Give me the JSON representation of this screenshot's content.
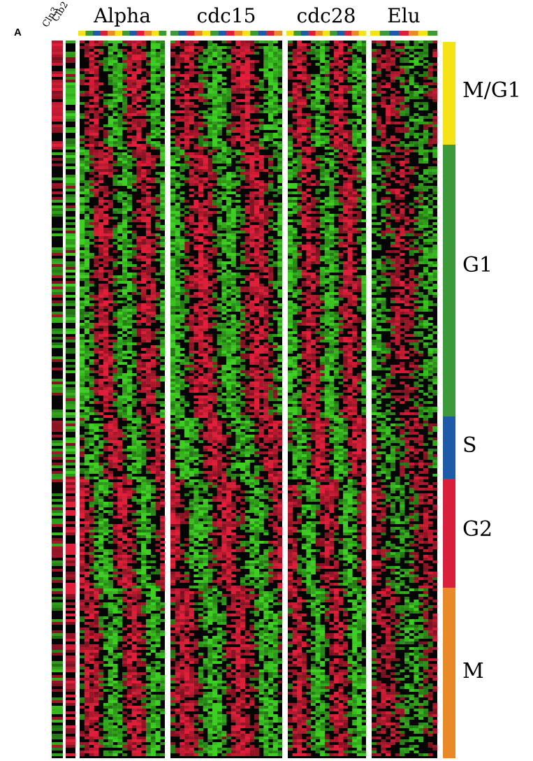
{
  "panel_letter": "A",
  "row_labels": [
    "Cln3",
    "Clb2"
  ],
  "column_groups": [
    {
      "key": "alpha",
      "label": "Alpha"
    },
    {
      "key": "cdc15",
      "label": "cdc15"
    },
    {
      "key": "cdc28",
      "label": "cdc28"
    },
    {
      "key": "elu",
      "label": "Elu"
    }
  ],
  "phases": [
    {
      "key": "mg1",
      "label": "M/G1",
      "color": "#f5e217"
    },
    {
      "key": "g1",
      "label": "G1",
      "color": "#3d9a3a"
    },
    {
      "key": "s",
      "label": "S",
      "color": "#1f5aa8"
    },
    {
      "key": "g2",
      "label": "G2",
      "color": "#d81f3c"
    },
    {
      "key": "m",
      "label": "M",
      "color": "#e98a28"
    }
  ],
  "heatmap_colors": {
    "up": "#e0203a",
    "down": "#3fcf24",
    "neutral": "#050505"
  }
}
